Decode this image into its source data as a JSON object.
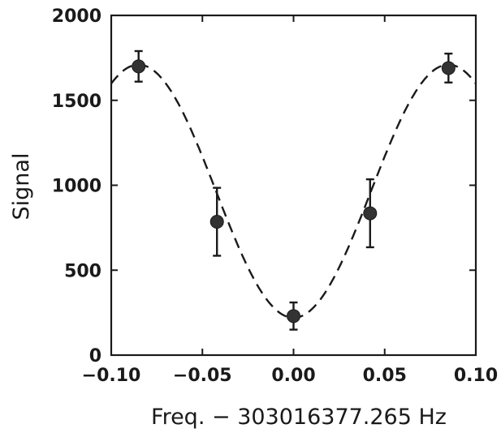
{
  "chart_data": {
    "type": "scatter",
    "title": "",
    "xlabel": "Freq. − 303016377.265 Hz",
    "ylabel": "Signal",
    "xlim": [
      -0.1,
      0.1
    ],
    "ylim": [
      0,
      2000
    ],
    "x_ticks": [
      -0.1,
      -0.05,
      0.0,
      0.05,
      0.1
    ],
    "x_tick_labels": [
      "−0.10",
      "−0.05",
      "0.00",
      "0.05",
      "0.10"
    ],
    "y_ticks": [
      0,
      500,
      1000,
      1500,
      2000
    ],
    "y_tick_labels": [
      "0",
      "500",
      "1000",
      "1500",
      "2000"
    ],
    "grid": false,
    "series": [
      {
        "type": "scatter",
        "values": [
          {
            "x": -0.085,
            "y": 1700,
            "yerr": 90
          },
          {
            "x": -0.042,
            "y": 785,
            "yerr": 200
          },
          {
            "x": 0.0,
            "y": 230,
            "yerr": 80
          },
          {
            "x": 0.042,
            "y": 835,
            "yerr": 200
          },
          {
            "x": 0.085,
            "y": 1690,
            "yerr": 85
          }
        ]
      },
      {
        "type": "line",
        "style": "dashed",
        "fit": {
          "mean": 965,
          "amplitude": 745,
          "period": 0.17
        }
      }
    ],
    "colors": {
      "ink": "#1a1a1a",
      "background": "#ffffff"
    }
  }
}
